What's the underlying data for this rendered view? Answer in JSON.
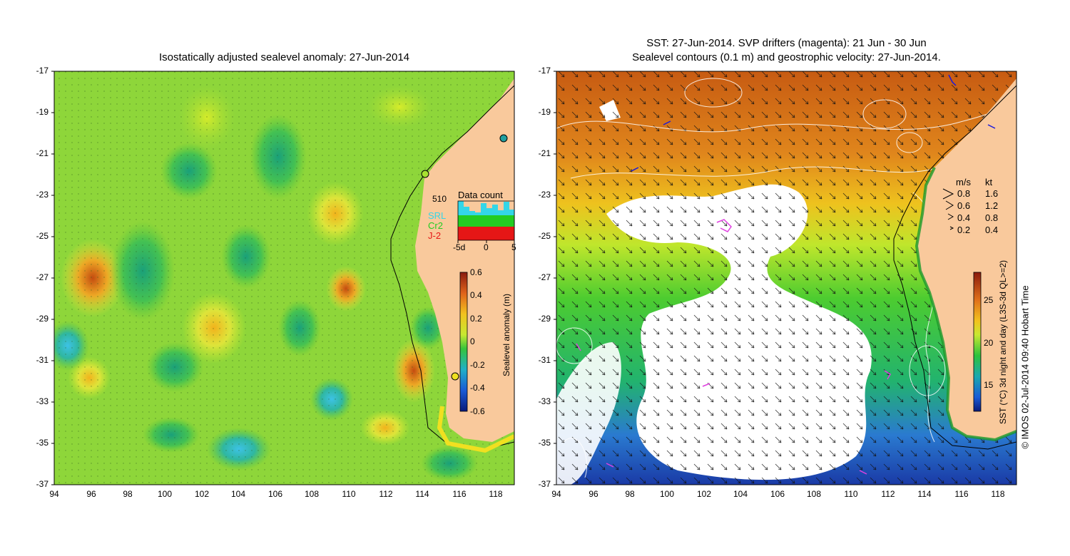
{
  "left_panel": {
    "title": "Isostatically adjusted sealevel anomaly: 27-Jun-2014",
    "data_count": {
      "title": "Data count",
      "max_label": "510",
      "missions": [
        {
          "name": "SRL",
          "color": "#33d6e8"
        },
        {
          "name": "Cr2",
          "color": "#22cc22"
        },
        {
          "name": "J-2",
          "color": "#e51616"
        }
      ],
      "x_ticks": [
        "-5d",
        "0",
        "5"
      ]
    },
    "colorbar": {
      "label": "Sealevel anomaly (m)",
      "ticks": [
        "0.6",
        "0.4",
        "0.2",
        "0",
        "-0.2",
        "-0.4",
        "-0.6"
      ]
    }
  },
  "right_panel": {
    "title_line1": "SST: 27-Jun-2014. SVP drifters (magenta): 21 Jun - 30 Jun",
    "title_line2": "Sealevel contours (0.1 m) and geostrophic velocity: 27-Jun-2014.",
    "velocity_legend": {
      "header_ms": "m/s",
      "header_kt": "kt",
      "rows": [
        {
          "ms": "0.8",
          "kt": "1.6"
        },
        {
          "ms": "0.6",
          "kt": "1.2"
        },
        {
          "ms": "0.4",
          "kt": "0.8"
        },
        {
          "ms": "0.2",
          "kt": "0.4"
        }
      ]
    },
    "colorbar": {
      "label": "SST (°C) 3d night and day (L3S-3d QL>=2)",
      "ticks": [
        "25",
        "20",
        "15"
      ]
    }
  },
  "axes": {
    "x_ticks": [
      "94",
      "96",
      "98",
      "100",
      "102",
      "104",
      "106",
      "108",
      "110",
      "112",
      "114",
      "116",
      "118"
    ],
    "y_ticks": [
      "-17",
      "-19",
      "-21",
      "-23",
      "-25",
      "-27",
      "-29",
      "-31",
      "-33",
      "-35",
      "-37"
    ]
  },
  "credit": "© IMOS 02-Jul-2014 09:40 Hobart Time",
  "colors": {
    "land": "#f9c99c",
    "sla_base": "#8ed63a",
    "coast_line": "#000000",
    "drifter": "#e040e0"
  }
}
